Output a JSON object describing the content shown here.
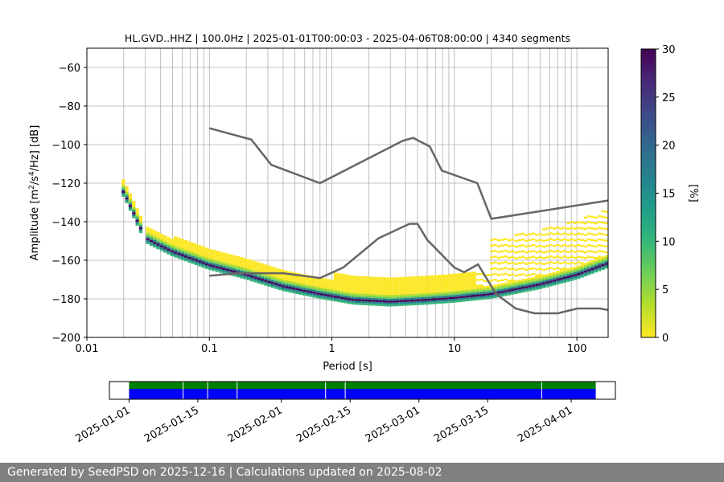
{
  "chart_data": {
    "type": "heatmap",
    "title": "HL.GVD..HHZ | 100.0Hz | 2025-01-01T00:00:03 - 2025-04-06T08:00:00 | 4340 segments",
    "xlabel": "Period [s]",
    "ylabel_prefix": "Amplitude [m",
    "ylabel_suffix": "] [dB]",
    "x_scale": "log",
    "xlim": [
      0.01,
      180
    ],
    "ylim": [
      -200,
      -50
    ],
    "grid": true,
    "x_ticks": [
      0.01,
      0.1,
      1,
      10,
      100
    ],
    "x_tick_labels": [
      "0.01",
      "0.1",
      "1",
      "10",
      "100"
    ],
    "y_ticks": [
      -200,
      -180,
      -160,
      -140,
      -120,
      -100,
      -80,
      -60
    ],
    "y_tick_labels": [
      "−200",
      "−180",
      "−160",
      "−140",
      "−120",
      "−100",
      "−80",
      "−60"
    ],
    "colorbar": {
      "label": "[%]",
      "range": [
        0,
        30
      ],
      "ticks": [
        0,
        5,
        10,
        15,
        20,
        25,
        30
      ],
      "tick_labels": [
        "0",
        "5",
        "10",
        "15",
        "20",
        "25",
        "30"
      ],
      "colormap": [
        "#fde725",
        "#b5de2b",
        "#6ece58",
        "#35b779",
        "#1f9e89",
        "#26828e",
        "#31688e",
        "#3e4989",
        "#482878",
        "#440154"
      ]
    },
    "noise_models": [
      {
        "name": "high",
        "points": [
          [
            0.1,
            -91.5
          ],
          [
            0.22,
            -97.4
          ],
          [
            0.32,
            -110.5
          ],
          [
            0.8,
            -120
          ],
          [
            3.8,
            -98
          ],
          [
            4.6,
            -96.5
          ],
          [
            6.3,
            -101
          ],
          [
            7.9,
            -113.5
          ],
          [
            15.4,
            -120
          ],
          [
            20,
            -138.5
          ],
          [
            180,
            -129
          ]
        ]
      },
      {
        "name": "low",
        "points": [
          [
            0.1,
            -168
          ],
          [
            0.17,
            -166.7
          ],
          [
            0.4,
            -166.7
          ],
          [
            0.8,
            -169.2
          ],
          [
            1.24,
            -163.7
          ],
          [
            2.4,
            -148.6
          ],
          [
            4.3,
            -141.1
          ],
          [
            5,
            -141.1
          ],
          [
            6,
            -149.4
          ],
          [
            10,
            -163.8
          ],
          [
            12,
            -166.2
          ],
          [
            15.6,
            -162.1
          ],
          [
            21.9,
            -177.5
          ],
          [
            31.6,
            -185
          ],
          [
            45,
            -187.5
          ],
          [
            70,
            -187.5
          ],
          [
            101,
            -185
          ],
          [
            154,
            -185
          ],
          [
            180,
            -185.8
          ]
        ]
      }
    ],
    "psd_mode": [
      [
        0.02,
        -125
      ],
      [
        0.03,
        -149
      ],
      [
        0.05,
        -156
      ],
      [
        0.1,
        -163
      ],
      [
        0.2,
        -168
      ],
      [
        0.4,
        -174
      ],
      [
        0.8,
        -178
      ],
      [
        1.5,
        -181
      ],
      [
        3,
        -182
      ],
      [
        6,
        -181
      ],
      [
        10,
        -180
      ],
      [
        20,
        -178
      ],
      [
        50,
        -173
      ],
      [
        100,
        -168
      ],
      [
        180,
        -162
      ]
    ],
    "availability": {
      "date_ticks": [
        "2025-01-01",
        "2025-01-15",
        "2025-02-01",
        "2025-02-15",
        "2025-03-01",
        "2025-03-15",
        "2025-04-01"
      ],
      "range": [
        "2024-12-28",
        "2025-04-10"
      ],
      "data_span": [
        "2025-01-01",
        "2025-04-06"
      ],
      "gaps": [
        "2025-01-12",
        "2025-01-17",
        "2025-01-23",
        "2025-02-10",
        "2025-02-14",
        "2025-03-26"
      ],
      "colors": {
        "top": "#008000",
        "bottom": "#0000ff"
      }
    }
  },
  "footer": {
    "text": "Generated by SeedPSD on 2025-12-16 | Calculations updated on 2025-08-02"
  }
}
